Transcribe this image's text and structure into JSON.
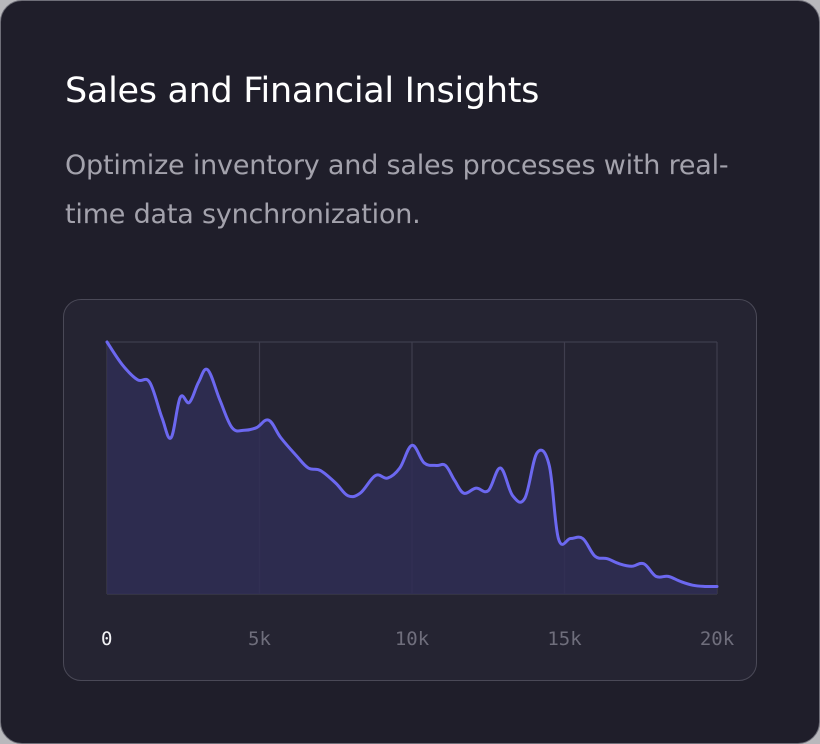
{
  "card": {
    "title": "Sales and Financial Insights",
    "description": "Optimize inventory and sales processes with real-time data synchronization."
  },
  "colors": {
    "card_background": "#1f1e2a",
    "panel_background": "#252432",
    "line": "#6c68f0",
    "area_fill": "#2f2e55",
    "grid": "#3f3e4e",
    "tick_active": "#f2f2f5",
    "tick_muted": "#6f6e7c"
  },
  "chart_data": {
    "type": "area",
    "xlim": [
      0,
      20000
    ],
    "ylim": [
      0,
      100
    ],
    "grid": "vertical",
    "x_ticks": [
      {
        "value": 0,
        "label": "0"
      },
      {
        "value": 5000,
        "label": "5k"
      },
      {
        "value": 10000,
        "label": "10k"
      },
      {
        "value": 15000,
        "label": "15k"
      },
      {
        "value": 20000,
        "label": "20k"
      }
    ],
    "active_tick": 0,
    "series": [
      {
        "x": [
          0,
          500,
          1000,
          1400,
          1800,
          2100,
          2400,
          2700,
          3000,
          3300,
          3700,
          4100,
          4500,
          4900,
          5300,
          5700,
          6200,
          6600,
          7000,
          7500,
          7900,
          8300,
          8800,
          9200,
          9600,
          10000,
          10400,
          10800,
          11100,
          11400,
          11700,
          12100,
          12500,
          12900,
          13300,
          13700,
          14100,
          14500,
          14800,
          15200,
          15600,
          16000,
          16400,
          16800,
          17200,
          17600,
          18000,
          18400,
          18800,
          19200,
          19600,
          20000
        ],
        "y": [
          100,
          91,
          85,
          84,
          70,
          62,
          78,
          76,
          84,
          89,
          77,
          66,
          65,
          66,
          69,
          62,
          55,
          50,
          49,
          44,
          39,
          40,
          47,
          46,
          50,
          59,
          52,
          51,
          51,
          45,
          40,
          42,
          41,
          50,
          39,
          38,
          56,
          51,
          22,
          22,
          22,
          15,
          14,
          12,
          11,
          12,
          7,
          7,
          5,
          3.5,
          3,
          3
        ]
      }
    ]
  }
}
